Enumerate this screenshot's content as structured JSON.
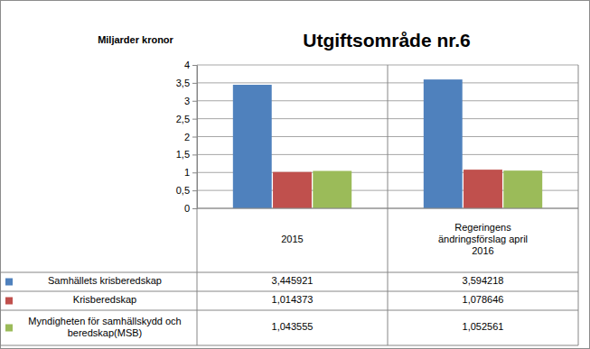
{
  "chart_data": {
    "type": "bar",
    "title": "Utgiftsområde nr.6",
    "y_label": "Miljarder kronor",
    "categories": [
      "2015",
      "Regeringens ändringsförslag april 2016"
    ],
    "series": [
      {
        "name": "Samhällets krisberedskap",
        "color": "#4f81bd",
        "values": [
          3.445921,
          3.594218
        ],
        "value_labels": [
          "3,445921",
          "3,594218"
        ]
      },
      {
        "name": "Krisberedskap",
        "color": "#c0504d",
        "values": [
          1.014373,
          1.078646
        ],
        "value_labels": [
          "1,014373",
          "1,078646"
        ]
      },
      {
        "name": "Myndigheten för samhällskydd och beredskap(MSB)",
        "color": "#9bbb59",
        "values": [
          1.043555,
          1.052561
        ],
        "value_labels": [
          "1,043555",
          "1,052561"
        ]
      }
    ],
    "ylim": [
      0,
      4
    ],
    "yticks": [
      0,
      {
        "value": 0.5,
        "label": "0,5"
      },
      1,
      {
        "value": 1.5,
        "label": "1,5"
      },
      2,
      {
        "value": 2.5,
        "label": "2,5"
      },
      3,
      {
        "value": 3.5,
        "label": "3,5"
      },
      4
    ],
    "grid": true
  }
}
